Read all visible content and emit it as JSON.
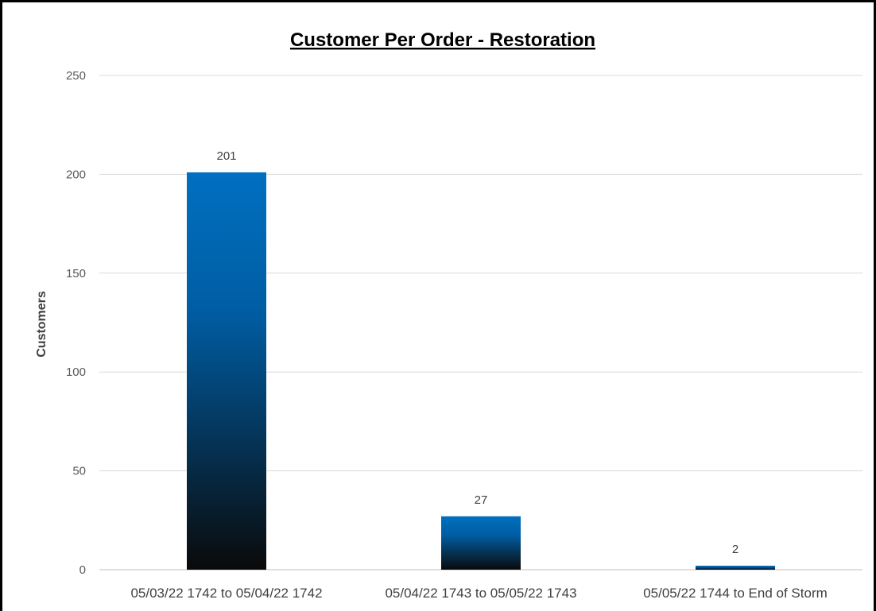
{
  "chart_data": {
    "type": "bar",
    "title": "Customer Per Order - Restoration",
    "xlabel": "",
    "ylabel": "Customers",
    "categories": [
      "05/03/22 1742 to 05/04/22 1742",
      "05/04/22 1743 to 05/05/22 1743",
      "05/05/22 1744 to End of Storm"
    ],
    "values": [
      201,
      27,
      2
    ],
    "data_labels": [
      "201",
      "27",
      "2"
    ],
    "ylim": [
      0,
      250
    ],
    "yticks": [
      "0",
      "50",
      "100",
      "150",
      "200",
      "250"
    ],
    "grid": true,
    "legend": "none",
    "colors": {
      "bar_top": "#0070c0",
      "bar_bottom": "#0a0a0a",
      "grid": "#d9d9d9",
      "axis": "#bfbfbf"
    }
  }
}
